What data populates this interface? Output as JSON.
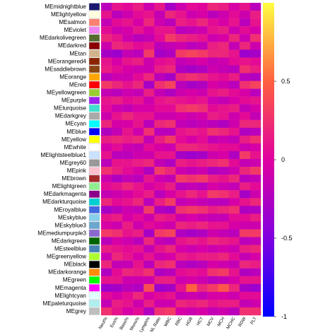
{
  "chart_data": {
    "type": "heatmap",
    "title": "",
    "xlabel": "",
    "ylabel": "",
    "rows": [
      "MEmidnightblue",
      "MElightyellow",
      "MEsalmon",
      "MEviolet",
      "MEdarkolivegreen",
      "MEdarkred",
      "MEtan",
      "MEorangered4",
      "MEsaddlebrown",
      "MEorange",
      "MEred",
      "MEyellowgreen",
      "MEpurple",
      "MEturquoise",
      "MEdarkgrey",
      "MEcyan",
      "MEblue",
      "MEyellow",
      "MEwhite",
      "MElightsteelblue1",
      "MEgrey60",
      "MEpink",
      "MEbrown",
      "MElightgreen",
      "MEdarkmagenta",
      "MEdarkturquoise",
      "MEroyalblue",
      "MEskyblue",
      "MEskyblue3",
      "MEmediumpurple3",
      "MEdarkgreen",
      "MEsteelblue",
      "MEgreenyellow",
      "MEblack",
      "MEdarkorange",
      "MEgreen",
      "MEmagenta",
      "MElightcyan",
      "MEpaleturquoise",
      "MEgrey"
    ],
    "row_colors": [
      "#191970",
      "#ffffe0",
      "#fa8072",
      "#ee82ee",
      "#556b2f",
      "#8b0000",
      "#d2b48c",
      "#8b2500",
      "#8b4513",
      "#ffa500",
      "#ff0000",
      "#9acd32",
      "#a020f0",
      "#40e0d0",
      "#a9a9a9",
      "#00ffff",
      "#0000ff",
      "#ffff00",
      "#ffffff",
      "#cae1ff",
      "#999999",
      "#ffc0cb",
      "#a52a2a",
      "#90ee90",
      "#8b008b",
      "#00ced1",
      "#4169e1",
      "#87ceeb",
      "#6ca6cd",
      "#8968cd",
      "#006400",
      "#4682b4",
      "#adff2f",
      "#000000",
      "#ff8c00",
      "#00ff00",
      "#ff00ff",
      "#e0ffff",
      "#afeeee",
      "#bebebe"
    ],
    "columns": [
      "Neut%",
      "Eos%",
      "Baso%",
      "Mono%",
      "Lymph%",
      "NL Ratio",
      "WBC",
      "RBC",
      "HGB",
      "HCT",
      "MCV",
      "MCH",
      "MCHC",
      "RDW",
      "PLT"
    ],
    "values": [
      [
        -0.2,
        0.1,
        0.05,
        0.15,
        -0.1,
        0.12,
        -0.3,
        -0.1,
        0.05,
        0.02,
        0.2,
        0.15,
        -0.05,
        0.1,
        -0.2
      ],
      [
        0.1,
        -0.2,
        -0.1,
        0.05,
        0.1,
        -0.15,
        0.2,
        0.1,
        -0.1,
        -0.05,
        -0.2,
        -0.1,
        0.05,
        -0.1,
        0.15
      ],
      [
        -0.15,
        0.05,
        0.1,
        -0.05,
        0.2,
        -0.1,
        -0.2,
        0.15,
        0.1,
        0.2,
        0.05,
        -0.05,
        0.1,
        -0.2,
        0.1
      ],
      [
        0.05,
        -0.1,
        -0.05,
        0.1,
        -0.05,
        0.1,
        0.1,
        -0.2,
        -0.15,
        -0.1,
        0.1,
        0.15,
        -0.1,
        0.05,
        -0.05
      ],
      [
        0.2,
        0.1,
        -0.1,
        -0.2,
        -0.15,
        0.05,
        0.3,
        0.2,
        0.15,
        0.1,
        -0.1,
        -0.05,
        0.2,
        -0.1,
        0.25
      ],
      [
        -0.1,
        0.2,
        0.15,
        0.05,
        0.1,
        -0.2,
        -0.15,
        -0.1,
        -0.2,
        -0.15,
        0.15,
        0.2,
        -0.15,
        0.2,
        -0.1
      ],
      [
        -0.3,
        -0.35,
        -0.15,
        -0.2,
        0.3,
        -0.3,
        -0.25,
        0.3,
        0.35,
        0.3,
        0.2,
        0.2,
        0.1,
        -0.35,
        -0.3
      ],
      [
        0.1,
        -0.05,
        0.1,
        0.15,
        -0.1,
        0.05,
        0.1,
        -0.15,
        -0.1,
        -0.05,
        -0.15,
        -0.1,
        0.05,
        0.1,
        0.05
      ],
      [
        0.15,
        0.05,
        -0.05,
        -0.1,
        -0.1,
        0.15,
        0.2,
        -0.25,
        -0.3,
        -0.25,
        -0.1,
        -0.15,
        -0.2,
        0.25,
        0.15
      ],
      [
        -0.2,
        -0.1,
        -0.1,
        0.05,
        0.2,
        -0.2,
        -0.3,
        0.2,
        0.25,
        0.2,
        0.1,
        0.05,
        0.15,
        -0.2,
        -0.25
      ],
      [
        0.3,
        0.2,
        0.1,
        0.2,
        -0.3,
        0.25,
        0.35,
        -0.2,
        -0.3,
        -0.25,
        -0.05,
        -0.1,
        -0.2,
        0.25,
        0.35
      ],
      [
        -0.15,
        -0.2,
        -0.1,
        -0.15,
        0.15,
        -0.15,
        -0.25,
        -0.1,
        -0.05,
        -0.1,
        0.1,
        0.15,
        0.05,
        -0.05,
        -0.2
      ],
      [
        0.1,
        0.15,
        0.05,
        0.1,
        -0.1,
        0.1,
        0.15,
        0.1,
        0.05,
        0.1,
        -0.1,
        -0.15,
        -0.05,
        0.05,
        0.1
      ],
      [
        0.05,
        -0.1,
        -0.15,
        -0.05,
        -0.05,
        0.05,
        0.05,
        0.25,
        0.3,
        0.25,
        0.05,
        0.1,
        0.15,
        -0.15,
        -0.05
      ],
      [
        -0.1,
        0.1,
        0.2,
        0.1,
        0.1,
        -0.1,
        -0.1,
        -0.05,
        -0.1,
        -0.05,
        0.15,
        0.1,
        -0.1,
        0.05,
        -0.15
      ],
      [
        0.2,
        -0.05,
        -0.05,
        0.1,
        -0.2,
        0.2,
        0.25,
        -0.15,
        -0.2,
        -0.15,
        -0.2,
        -0.25,
        -0.1,
        0.2,
        0.2
      ],
      [
        -0.25,
        -0.15,
        0.1,
        -0.1,
        0.25,
        -0.2,
        -0.2,
        0.1,
        0.15,
        0.1,
        0.25,
        0.2,
        0.1,
        -0.25,
        -0.2
      ],
      [
        0.15,
        0.2,
        0.15,
        0.2,
        -0.15,
        0.15,
        0.3,
        0.05,
        -0.05,
        0.05,
        -0.15,
        -0.1,
        -0.15,
        0.15,
        0.25
      ],
      [
        -0.05,
        0.05,
        -0.1,
        -0.15,
        0.05,
        -0.05,
        -0.1,
        0.2,
        0.2,
        0.15,
        0.1,
        0.05,
        0.05,
        -0.1,
        -0.05
      ],
      [
        0.1,
        -0.2,
        -0.2,
        -0.1,
        -0.1,
        0.1,
        0.1,
        -0.3,
        -0.35,
        -0.3,
        -0.1,
        -0.05,
        -0.25,
        0.3,
        0.1
      ],
      [
        -0.2,
        0.1,
        0.1,
        0.15,
        0.2,
        -0.15,
        -0.25,
        0.15,
        0.1,
        0.15,
        0.2,
        0.25,
        0.05,
        -0.15,
        -0.1
      ],
      [
        0.25,
        0.15,
        0.05,
        -0.05,
        -0.25,
        0.3,
        0.2,
        -0.1,
        -0.15,
        -0.1,
        -0.25,
        -0.2,
        -0.1,
        0.2,
        0.3
      ],
      [
        -0.1,
        -0.25,
        -0.15,
        -0.2,
        0.1,
        -0.1,
        -0.15,
        0.3,
        0.25,
        0.3,
        0.15,
        0.1,
        0.2,
        -0.2,
        -0.15
      ],
      [
        0.05,
        0.1,
        0.2,
        0.1,
        -0.05,
        0.05,
        0.15,
        -0.2,
        -0.15,
        -0.2,
        -0.05,
        -0.1,
        -0.15,
        0.15,
        0.05
      ],
      [
        -0.15,
        -0.1,
        -0.05,
        0.05,
        0.15,
        -0.2,
        -0.05,
        0.1,
        0.2,
        0.1,
        0.3,
        0.25,
        0.15,
        -0.3,
        -0.1
      ],
      [
        0.2,
        0.05,
        0.1,
        0.2,
        -0.2,
        0.15,
        0.3,
        -0.15,
        -0.1,
        -0.15,
        -0.2,
        -0.2,
        -0.05,
        0.1,
        0.2
      ],
      [
        -0.3,
        -0.2,
        -0.1,
        -0.15,
        0.3,
        -0.25,
        -0.3,
        0.25,
        0.3,
        0.25,
        0.15,
        0.2,
        0.25,
        -0.25,
        -0.25
      ],
      [
        0.1,
        0.15,
        -0.05,
        0.05,
        -0.1,
        0.15,
        0.1,
        -0.1,
        -0.05,
        -0.1,
        -0.15,
        -0.15,
        0.05,
        0.05,
        0.15
      ],
      [
        -0.05,
        -0.1,
        0.15,
        -0.1,
        0.05,
        -0.05,
        -0.1,
        0.2,
        0.15,
        0.2,
        0.1,
        0.1,
        -0.05,
        -0.1,
        -0.1
      ],
      [
        0.3,
        0.25,
        0.1,
        0.15,
        -0.3,
        0.3,
        0.35,
        -0.25,
        -0.3,
        -0.25,
        -0.1,
        -0.15,
        -0.2,
        0.3,
        0.3
      ],
      [
        -0.2,
        -0.05,
        -0.1,
        -0.2,
        0.2,
        -0.15,
        -0.2,
        0.1,
        0.15,
        0.1,
        0.2,
        0.15,
        0.1,
        -0.2,
        -0.15
      ],
      [
        0.15,
        0.1,
        0.05,
        0.1,
        -0.15,
        0.1,
        0.2,
        -0.05,
        -0.1,
        -0.05,
        -0.1,
        -0.05,
        -0.1,
        0.15,
        0.2
      ],
      [
        -0.1,
        0.2,
        0.1,
        -0.05,
        0.1,
        -0.1,
        -0.05,
        0.15,
        0.1,
        0.15,
        0.15,
        0.2,
        0.05,
        -0.15,
        -0.05
      ],
      [
        0.2,
        -0.15,
        -0.15,
        0.1,
        -0.2,
        0.2,
        0.25,
        -0.2,
        -0.25,
        -0.2,
        -0.05,
        -0.1,
        -0.15,
        0.2,
        0.15
      ],
      [
        -0.25,
        0.05,
        0.2,
        0.15,
        0.25,
        -0.25,
        -0.2,
        0.05,
        0.1,
        0.05,
        0.25,
        0.3,
        0.1,
        -0.25,
        -0.2
      ],
      [
        0.1,
        0.1,
        -0.1,
        -0.1,
        -0.1,
        0.15,
        0.15,
        -0.1,
        -0.05,
        -0.1,
        -0.2,
        -0.15,
        -0.05,
        0.1,
        0.1
      ],
      [
        -0.35,
        -0.3,
        -0.2,
        -0.25,
        0.4,
        -0.35,
        -0.3,
        0.1,
        0.5,
        0.2,
        0.3,
        0.45,
        0.2,
        -0.3,
        -0.35
      ],
      [
        0.05,
        -0.05,
        0.05,
        0.2,
        -0.05,
        0.05,
        0.1,
        -0.15,
        -0.1,
        -0.15,
        -0.05,
        -0.05,
        -0.1,
        0.05,
        0.05
      ],
      [
        -0.15,
        0.15,
        0.1,
        -0.1,
        0.15,
        -0.1,
        -0.1,
        0.2,
        0.15,
        0.2,
        0.1,
        0.15,
        0.15,
        -0.15,
        -0.1
      ],
      [
        0.25,
        0.1,
        -0.05,
        0.05,
        -0.25,
        0.25,
        0.3,
        -0.05,
        -0.1,
        -0.05,
        -0.15,
        -0.1,
        -0.2,
        0.25,
        0.25
      ]
    ],
    "colorbar": {
      "min": -1,
      "max": 1,
      "ticks": [
        "-1",
        "-0.5",
        "0",
        "0.5"
      ],
      "tick_values": [
        -1,
        -0.5,
        0,
        0.5
      ]
    },
    "cell_text_visible": false
  }
}
